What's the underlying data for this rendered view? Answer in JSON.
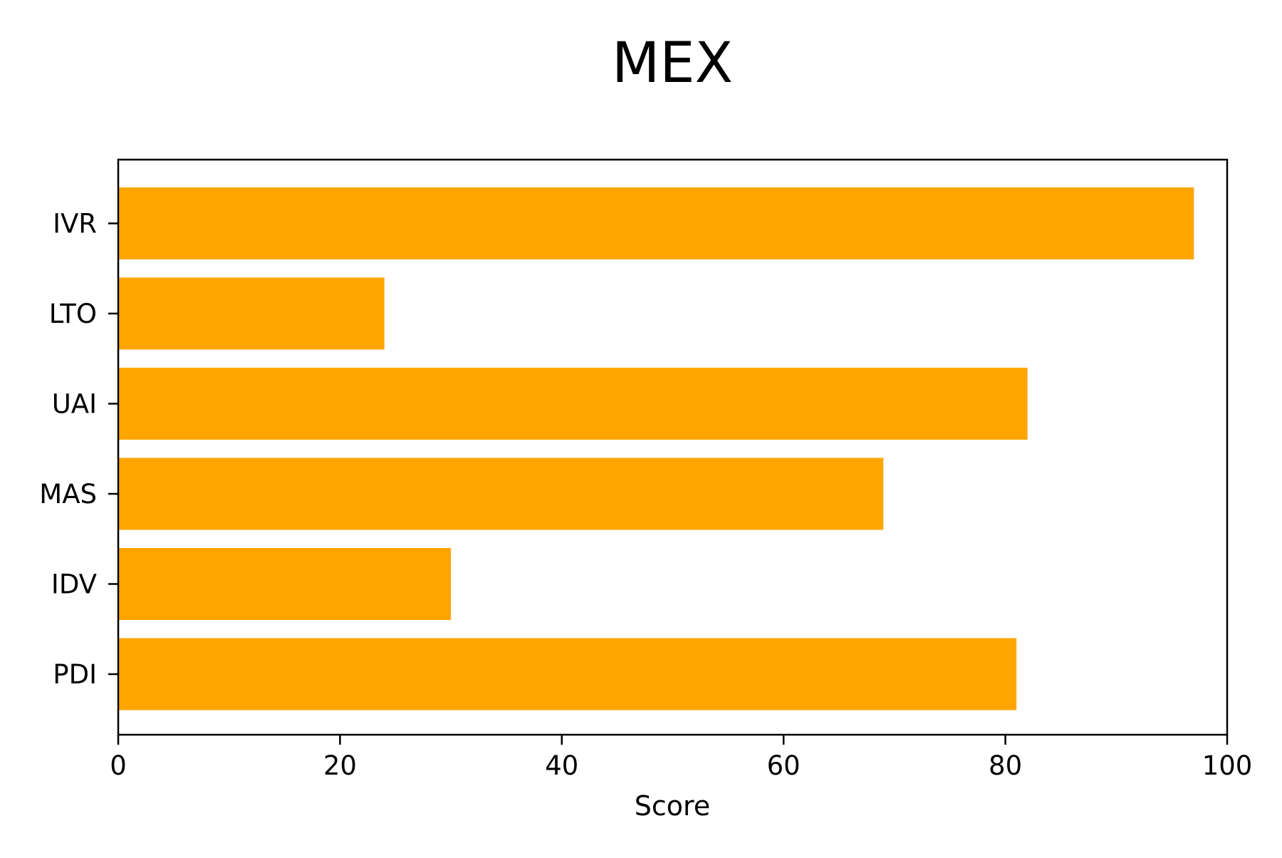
{
  "chart_data": {
    "type": "bar",
    "orientation": "horizontal",
    "title": "MEX",
    "xlabel": "Score",
    "ylabel": "",
    "categories": [
      "PDI",
      "IDV",
      "MAS",
      "UAI",
      "LTO",
      "IVR"
    ],
    "values": [
      81,
      30,
      69,
      82,
      24,
      97
    ],
    "xlim": [
      0,
      100
    ],
    "xticks": [
      0,
      20,
      40,
      60,
      80,
      100
    ],
    "grid": false,
    "bar_color": "#ffa500"
  }
}
